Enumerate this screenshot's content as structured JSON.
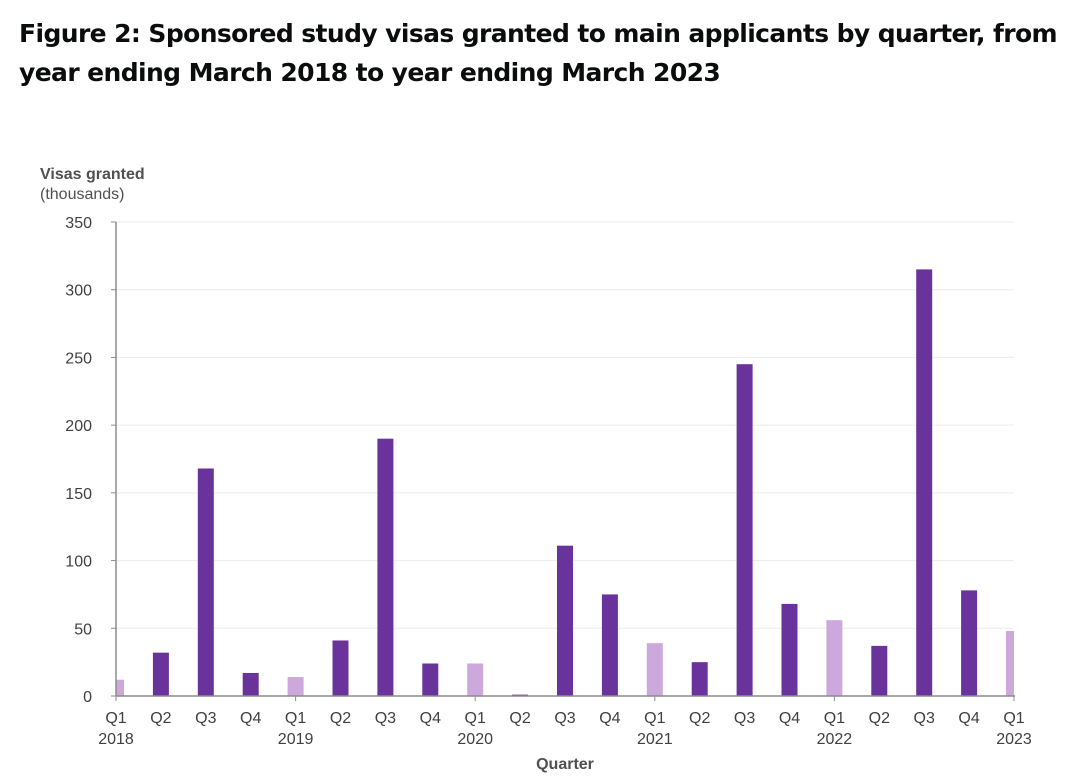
{
  "figure": {
    "title": "Figure 2: Sponsored study visas granted to main applicants by quarter, from year ending March 2018 to year ending March 2023"
  },
  "colors": {
    "q1_bar": "#cca8dd",
    "other_bar": "#6a339b",
    "axis": "#8c8c8c",
    "grid": "#ececec"
  },
  "chart_data": {
    "type": "bar",
    "title": "Figure 2: Sponsored study visas granted to main applicants by quarter, from year ending March 2018 to year ending March 2023",
    "ylabel_line1": "Visas granted",
    "ylabel_line2": "(thousands)",
    "xlabel": "Quarter",
    "ylim": [
      0,
      350
    ],
    "yticks": [
      0,
      50,
      100,
      150,
      200,
      250,
      300,
      350
    ],
    "grid": true,
    "categories": [
      "Q1 2018",
      "Q2 2018",
      "Q3 2018",
      "Q4 2018",
      "Q1 2019",
      "Q2 2019",
      "Q3 2019",
      "Q4 2019",
      "Q1 2020",
      "Q2 2020",
      "Q3 2020",
      "Q4 2020",
      "Q1 2021",
      "Q2 2021",
      "Q3 2021",
      "Q4 2021",
      "Q1 2022",
      "Q2 2022",
      "Q3 2022",
      "Q4 2022",
      "Q1 2023"
    ],
    "quarter_labels": [
      "Q1",
      "Q2",
      "Q3",
      "Q4",
      "Q1",
      "Q2",
      "Q3",
      "Q4",
      "Q1",
      "Q2",
      "Q3",
      "Q4",
      "Q1",
      "Q2",
      "Q3",
      "Q4",
      "Q1",
      "Q2",
      "Q3",
      "Q4",
      "Q1"
    ],
    "year_labels": [
      "2018",
      "",
      "",
      "",
      "2019",
      "",
      "",
      "",
      "2020",
      "",
      "",
      "",
      "2021",
      "",
      "",
      "",
      "2022",
      "",
      "",
      "",
      "2023"
    ],
    "values": [
      12,
      32,
      168,
      17,
      14,
      41,
      190,
      24,
      24,
      1,
      111,
      75,
      39,
      25,
      245,
      68,
      56,
      37,
      315,
      78,
      48
    ],
    "highlight": "Q1 bars shown in lighter purple"
  }
}
